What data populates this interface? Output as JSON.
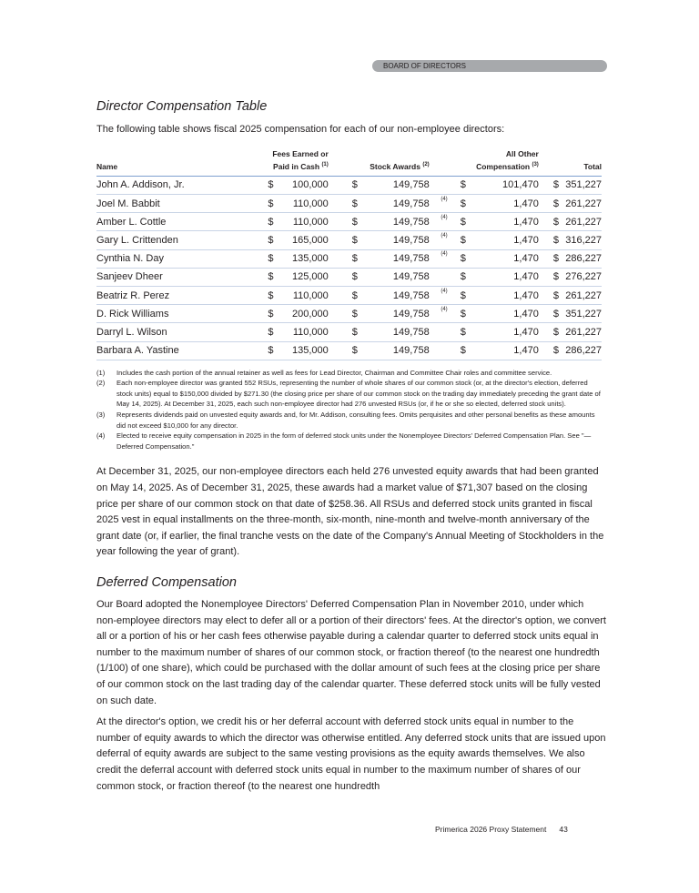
{
  "header": {
    "section": "BOARD OF DIRECTORS"
  },
  "title": "Director Compensation Table",
  "intro": "The following table shows fiscal 2025 compensation for each of our non-employee directors:",
  "table": {
    "headers": {
      "name": "Name",
      "fees": "Fees Earned or Paid in Cash",
      "fees_note": "(1)",
      "stock": "Stock Awards",
      "stock_note": "(2)",
      "other": "All Other Compensation",
      "other_note": "(3)",
      "total": "Total"
    },
    "currency": "$",
    "rows": [
      {
        "name": "John A. Addison, Jr.",
        "fees": "100,000",
        "stock": "149,758",
        "note": "",
        "other": "101,470",
        "total": "351,227"
      },
      {
        "name": "Joel M. Babbit",
        "fees": "110,000",
        "stock": "149,758",
        "note": "(4)",
        "other": "1,470",
        "total": "261,227"
      },
      {
        "name": "Amber L. Cottle",
        "fees": "110,000",
        "stock": "149,758",
        "note": "(4)",
        "other": "1,470",
        "total": "261,227"
      },
      {
        "name": "Gary L. Crittenden",
        "fees": "165,000",
        "stock": "149,758",
        "note": "(4)",
        "other": "1,470",
        "total": "316,227"
      },
      {
        "name": "Cynthia N. Day",
        "fees": "135,000",
        "stock": "149,758",
        "note": "(4)",
        "other": "1,470",
        "total": "286,227"
      },
      {
        "name": "Sanjeev Dheer",
        "fees": "125,000",
        "stock": "149,758",
        "note": "",
        "other": "1,470",
        "total": "276,227"
      },
      {
        "name": "Beatriz R. Perez",
        "fees": "110,000",
        "stock": "149,758",
        "note": "(4)",
        "other": "1,470",
        "total": "261,227"
      },
      {
        "name": "D. Rick Williams",
        "fees": "200,000",
        "stock": "149,758",
        "note": "(4)",
        "other": "1,470",
        "total": "351,227"
      },
      {
        "name": "Darryl L. Wilson",
        "fees": "110,000",
        "stock": "149,758",
        "note": "",
        "other": "1,470",
        "total": "261,227"
      },
      {
        "name": "Barbara A. Yastine",
        "fees": "135,000",
        "stock": "149,758",
        "note": "",
        "other": "1,470",
        "total": "286,227"
      }
    ]
  },
  "footnotes": [
    {
      "n": "(1)",
      "text": "Includes the cash portion of the annual retainer as well as fees for Lead Director, Chairman and Committee Chair roles and committee service."
    },
    {
      "n": "(2)",
      "text": "Each non-employee director was granted 552 RSUs, representing the number of whole shares of our common stock (or, at the director's election, deferred stock units) equal to $150,000 divided by $271.30 (the closing price per share of our common stock on the trading day immediately preceding the grant date of May 14, 2025). At December 31, 2025, each such non-employee director had 276 unvested RSUs (or, if he or she so elected, deferred stock units)."
    },
    {
      "n": "(3)",
      "text": "Represents dividends paid on unvested equity awards and, for Mr. Addison, consulting fees. Omits perquisites and other personal benefits as these amounts did not exceed $10,000 for any director."
    },
    {
      "n": "(4)",
      "text": "Elected to receive equity compensation in 2025 in the form of deferred stock units under the Nonemployee Directors' Deferred Compensation Plan. See \"— Deferred Compensation.\""
    }
  ],
  "para1": "At December 31, 2025, our non-employee directors each held 276 unvested equity awards that had been granted on May 14, 2025. As of December 31, 2025, these awards had a market value of $71,307 based on the closing price per share of our common stock on that date of $258.36. All RSUs and deferred stock units granted in fiscal 2025 vest in equal installments on the three-month, six-month, nine-month and twelve-month anniversary of the grant date (or, if earlier, the final tranche vests on the date of the Company's Annual Meeting of Stockholders in the year following the year of grant).",
  "title2": "Deferred Compensation",
  "para2": "Our Board adopted the Nonemployee Directors' Deferred Compensation Plan in November 2010, under which non-employee directors may elect to defer all or a portion of their directors' fees. At the director's option, we convert all or a portion of his or her cash fees otherwise payable during a calendar quarter to deferred stock units equal in number to the maximum number of shares of our common stock, or fraction thereof (to the nearest one hundredth (1/100) of one share), which could be purchased with the dollar amount of such fees at the closing price per share of our common stock on the last trading day of the calendar quarter. These deferred stock units will be fully vested on such date.",
  "para3": "At the director's option, we credit his or her deferral account with deferred stock units equal in number to the number of equity awards to which the director was otherwise entitled. Any deferred stock units that are issued upon deferral of equity awards are subject to the same vesting provisions as the equity awards themselves. We also credit the deferral account with deferred stock units equal in number to the maximum number of shares of our common stock, or fraction thereof (to the nearest one hundredth",
  "footer": {
    "doc": "Primerica 2026 Proxy Statement",
    "page": "43"
  }
}
